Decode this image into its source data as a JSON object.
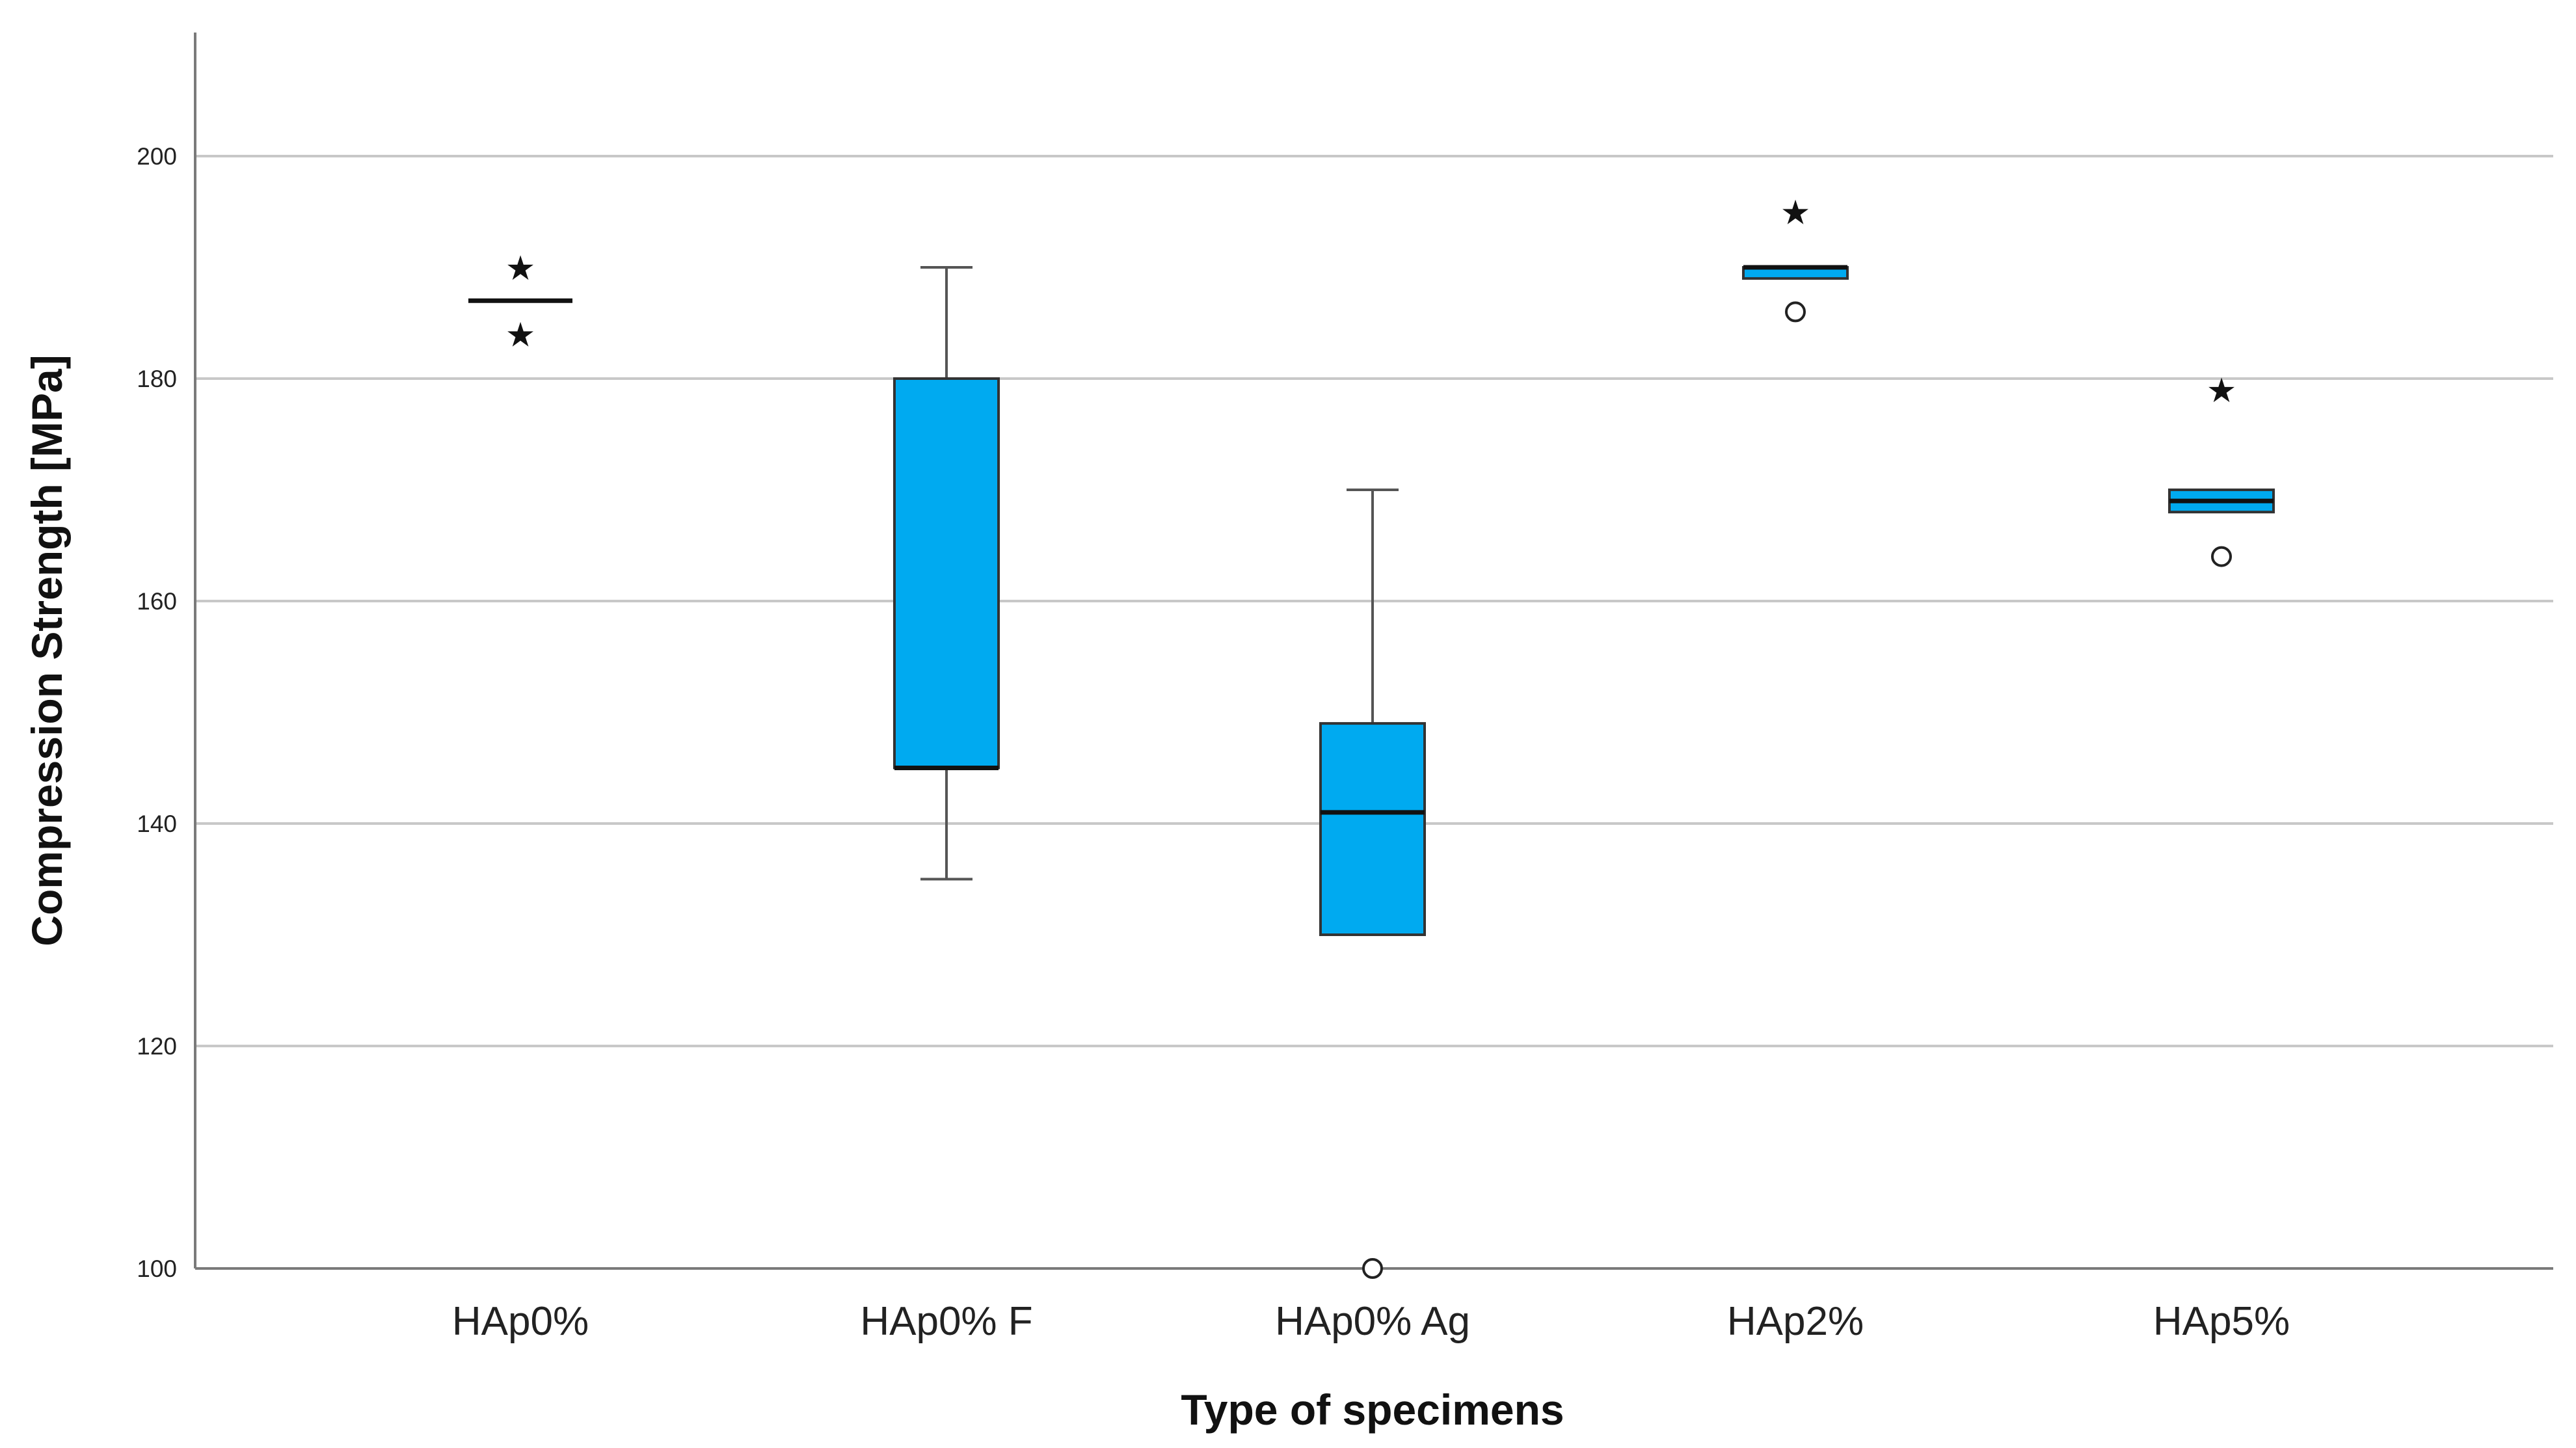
{
  "chart_data": {
    "type": "box",
    "title": "",
    "xlabel": "Type of specimens",
    "ylabel": "Compression Strength [MPa]",
    "ylim": [
      100,
      210
    ],
    "yticks": [
      100,
      120,
      140,
      160,
      180,
      200
    ],
    "grid": true,
    "colors": {
      "box_fill": "#00aaf0",
      "box_stroke": "#333333",
      "median": "#111111",
      "grid": "#c8c8c8"
    },
    "categories": [
      "HAp0%",
      "HAp0% F",
      "HAp0% Ag",
      "HAp2%",
      "HAp5%"
    ],
    "boxes": [
      {
        "category": "HAp0%",
        "whisker_low": 187,
        "q1": 187,
        "median": 187,
        "q3": 187,
        "whisker_high": 187,
        "outliers": [],
        "extremes": [
          190,
          184
        ]
      },
      {
        "category": "HAp0% F",
        "whisker_low": 135,
        "q1": 145,
        "median": 145,
        "q3": 180,
        "whisker_high": 190,
        "outliers": [],
        "extremes": []
      },
      {
        "category": "HAp0% Ag",
        "whisker_low": 130,
        "q1": 130,
        "median": 141,
        "q3": 149,
        "whisker_high": 170,
        "outliers": [
          100
        ],
        "extremes": []
      },
      {
        "category": "HAp2%",
        "whisker_low": 189,
        "q1": 189,
        "median": 190,
        "q3": 190,
        "whisker_high": 190,
        "outliers": [
          186
        ],
        "extremes": [
          195
        ]
      },
      {
        "category": "HAp5%",
        "whisker_low": 168,
        "q1": 168,
        "median": 169,
        "q3": 170,
        "whisker_high": 170,
        "outliers": [
          164
        ],
        "extremes": [
          179
        ]
      }
    ]
  }
}
